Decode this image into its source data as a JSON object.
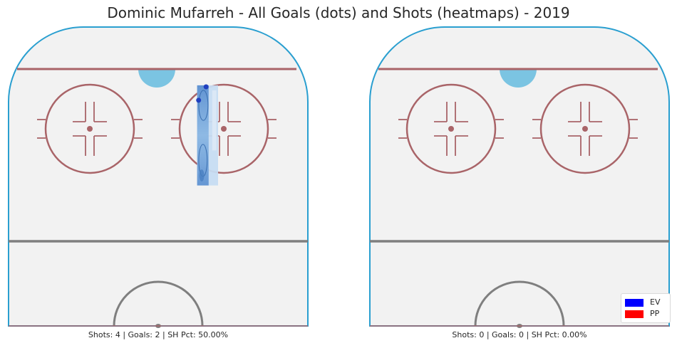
{
  "figure": {
    "title": "Dominic Mufarreh - All Goals (dots) and Shots (heatmaps) - 2019"
  },
  "colors": {
    "rink_fill": "#f2f2f2",
    "boards": "#2a9fd0",
    "red_line": "#a96468",
    "crease": "#7bc4e2",
    "center_line": "#7f7f7f",
    "goal_dot": "#1f3fbf",
    "ev": "#0000ff",
    "pp": "#ff0000"
  },
  "chart_data": [
    {
      "type": "heatmap",
      "panel": "left",
      "caption": "Shots: 4 | Goals: 2 | SH Pct: 50.00%",
      "stats": {
        "shots": 4,
        "goals": 2,
        "sh_pct": 50.0
      },
      "goals": [
        {
          "strength": "EV",
          "x": 0.66,
          "y": 0.2
        },
        {
          "strength": "EV",
          "x": 0.635,
          "y": 0.245
        }
      ],
      "heatmap": {
        "strength": "EV",
        "x_range": [
          0.63,
          0.7
        ],
        "y_range": [
          0.195,
          0.53
        ]
      }
    },
    {
      "type": "heatmap",
      "panel": "right",
      "caption": "Shots: 0 | Goals: 0 | SH Pct: 0.00%",
      "stats": {
        "shots": 0,
        "goals": 0,
        "sh_pct": 0.0
      },
      "goals": []
    }
  ],
  "legend": {
    "items": [
      {
        "label": "EV",
        "color": "#0000ff"
      },
      {
        "label": "PP",
        "color": "#ff0000"
      }
    ]
  }
}
